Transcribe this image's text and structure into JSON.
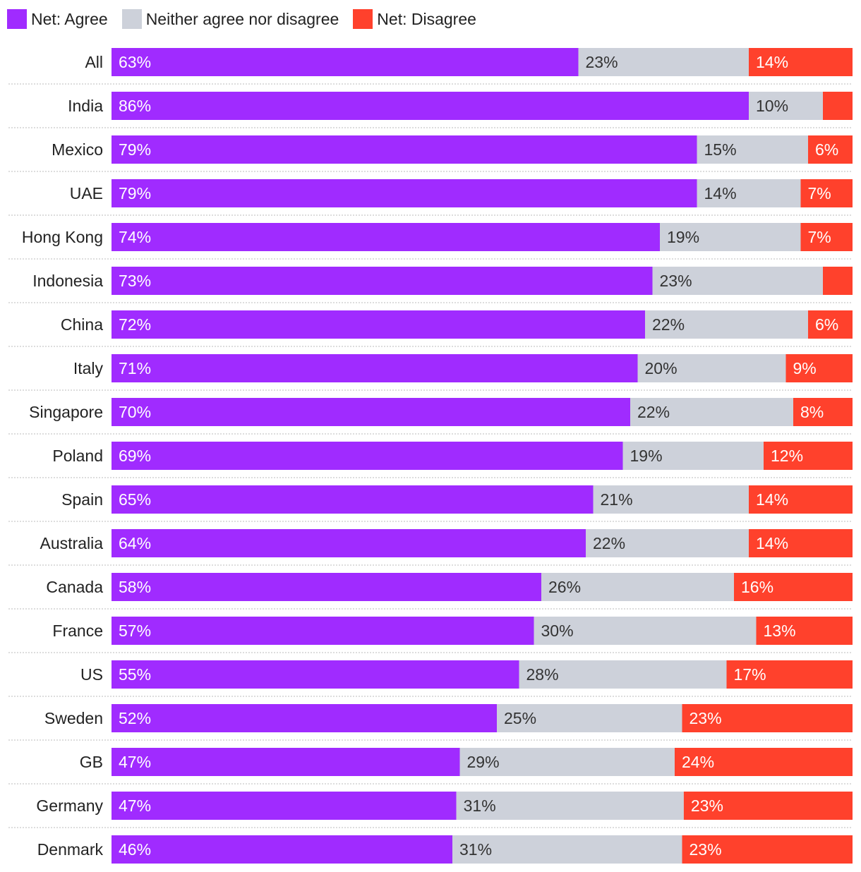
{
  "chart_data": {
    "type": "bar",
    "orientation": "horizontal",
    "stacked": true,
    "normalized": true,
    "categories": [
      "All",
      "India",
      "Mexico",
      "UAE",
      "Hong Kong",
      "Indonesia",
      "China",
      "Italy",
      "Singapore",
      "Poland",
      "Spain",
      "Australia",
      "Canada",
      "France",
      "US",
      "Sweden",
      "GB",
      "Germany",
      "Denmark"
    ],
    "series": [
      {
        "name": "Net: Agree",
        "color": "#a02bff",
        "label_color": "#ffffff",
        "values": [
          63,
          86,
          79,
          79,
          74,
          73,
          72,
          71,
          70,
          69,
          65,
          64,
          58,
          57,
          55,
          52,
          47,
          47,
          46
        ],
        "labels": [
          "63%",
          "86%",
          "79%",
          "79%",
          "74%",
          "73%",
          "72%",
          "71%",
          "70%",
          "69%",
          "65%",
          "64%",
          "58%",
          "57%",
          "55%",
          "52%",
          "47%",
          "47%",
          "46%"
        ]
      },
      {
        "name": "Neither agree nor disagree",
        "color": "#cdd1da",
        "label_color": "#333333",
        "values": [
          23,
          10,
          15,
          14,
          19,
          23,
          22,
          20,
          22,
          19,
          21,
          22,
          26,
          30,
          28,
          25,
          29,
          31,
          31
        ],
        "labels": [
          "23%",
          "10%",
          "15%",
          "14%",
          "19%",
          "23%",
          "22%",
          "20%",
          "22%",
          "19%",
          "21%",
          "22%",
          "26%",
          "30%",
          "28%",
          "25%",
          "29%",
          "31%",
          "31%"
        ]
      },
      {
        "name": "Net: Disagree",
        "color": "#ff412c",
        "label_color": "#ffffff",
        "values": [
          14,
          4,
          6,
          7,
          7,
          4,
          6,
          9,
          8,
          12,
          14,
          14,
          16,
          13,
          17,
          23,
          24,
          23,
          23
        ],
        "labels": [
          "14%",
          "",
          "6%",
          "7%",
          "7%",
          "",
          "6%",
          "9%",
          "8%",
          "12%",
          "14%",
          "14%",
          "16%",
          "13%",
          "17%",
          "23%",
          "24%",
          "23%",
          "23%"
        ]
      }
    ],
    "legend_position": "top-left",
    "grid": false
  }
}
